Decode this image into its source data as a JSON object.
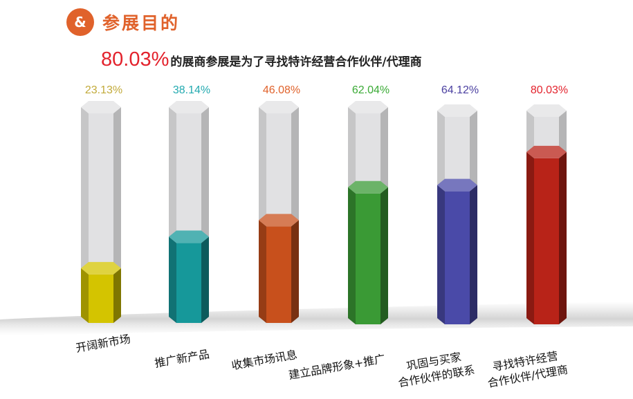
{
  "header": {
    "icon": "people-chart-icon",
    "icon_glyph": "&",
    "title": "参展目的"
  },
  "headline": {
    "highlight": "80.03%",
    "text": "的展商参展是为了寻找特许经营合作伙伴/代理商"
  },
  "chart_data": {
    "type": "bar",
    "categories": [
      "开阔新市场",
      "推广新产品",
      "收集市场讯息",
      "建立品牌形象+推广",
      "巩固与买家合作伙伴的联系",
      "寻找特许经营合作伙伴/代理商"
    ],
    "category_lines": [
      [
        "开阔新市场"
      ],
      [
        "推广新产品"
      ],
      [
        "收集市场讯息"
      ],
      [
        "建立品牌形象+推广"
      ],
      [
        "巩固与买家",
        "合作伙伴的联系"
      ],
      [
        "寻找特许经营",
        "合作伙伴/代理商"
      ]
    ],
    "values": [
      23.13,
      38.14,
      46.08,
      62.04,
      64.12,
      80.03
    ],
    "value_labels": [
      "23.13%",
      "38.14%",
      "46.08%",
      "62.04%",
      "64.12%",
      "80.03%"
    ],
    "colors": [
      "#d4c400",
      "#16989a",
      "#c8501c",
      "#3a9a35",
      "#4a4aa8",
      "#b82318"
    ],
    "label_colors": [
      "#c2aa3a",
      "#23aab0",
      "#e0622b",
      "#3aaa35",
      "#4a3fa0",
      "#e3222c"
    ],
    "ylim": [
      0,
      100
    ],
    "grid": false,
    "legend": "none"
  }
}
